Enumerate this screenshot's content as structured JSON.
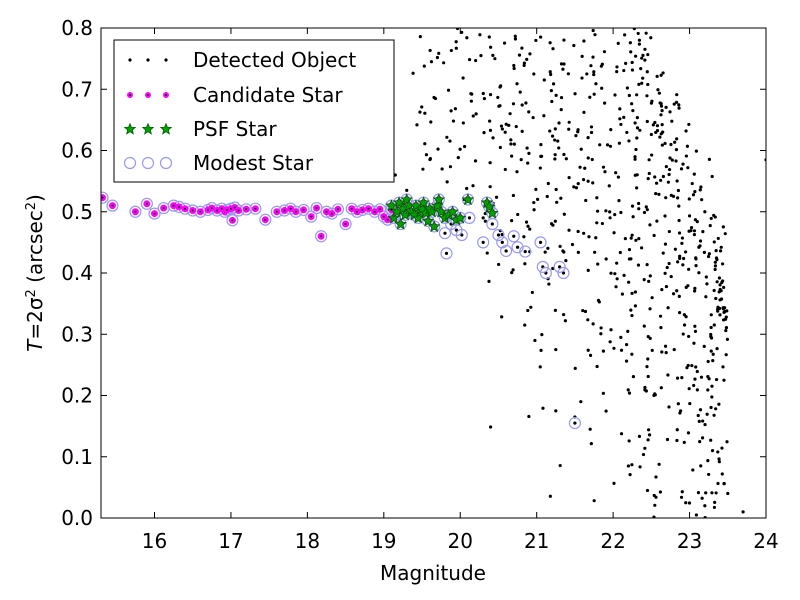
{
  "chart_data": {
    "type": "scatter",
    "xlabel": "Magnitude",
    "ylabel": "T = 2σ² (arcsec²)",
    "xlim": [
      15.3,
      24
    ],
    "ylim": [
      0.0,
      0.8
    ],
    "xticks": [
      "16",
      "17",
      "18",
      "19",
      "20",
      "21",
      "22",
      "23",
      "24"
    ],
    "yticks": [
      "0.0",
      "0.1",
      "0.2",
      "0.3",
      "0.4",
      "0.5",
      "0.6",
      "0.7",
      "0.8"
    ],
    "grid": false,
    "legend_position": "top-left",
    "legend": [
      {
        "name": "Detected Object",
        "marker": "dot",
        "color": "#000000"
      },
      {
        "name": "Candidate Star",
        "marker": "circle",
        "color": "#ff00ff"
      },
      {
        "name": "PSF Star",
        "marker": "star",
        "color": "#008000"
      },
      {
        "name": "Modest Star",
        "marker": "ring",
        "color": "#9999ee"
      }
    ],
    "series": [
      {
        "name": "Candidate Star",
        "x": [
          15.32,
          15.45,
          15.75,
          15.9,
          16.0,
          16.12,
          16.25,
          16.32,
          16.4,
          16.5,
          16.6,
          16.7,
          16.75,
          16.82,
          16.88,
          16.92,
          16.95,
          17.0,
          17.02,
          17.05,
          17.1,
          17.2,
          17.32,
          17.45,
          17.6,
          17.7,
          17.78,
          17.85,
          17.95,
          18.05,
          18.12,
          18.18,
          18.25,
          18.32,
          18.4,
          18.5,
          18.58,
          18.65,
          18.72,
          18.8,
          18.88,
          18.95,
          19.0,
          19.05,
          19.1
        ],
        "y": [
          0.523,
          0.51,
          0.5,
          0.513,
          0.497,
          0.506,
          0.51,
          0.508,
          0.505,
          0.502,
          0.5,
          0.503,
          0.506,
          0.502,
          0.505,
          0.5,
          0.503,
          0.505,
          0.486,
          0.507,
          0.502,
          0.504,
          0.505,
          0.487,
          0.5,
          0.502,
          0.505,
          0.5,
          0.503,
          0.492,
          0.506,
          0.46,
          0.5,
          0.497,
          0.504,
          0.48,
          0.505,
          0.5,
          0.503,
          0.505,
          0.5,
          0.504,
          0.492,
          0.487,
          0.503
        ]
      },
      {
        "name": "PSF Star",
        "x": [
          19.1,
          19.13,
          19.17,
          19.2,
          19.22,
          19.25,
          19.28,
          19.3,
          19.33,
          19.36,
          19.4,
          19.42,
          19.45,
          19.48,
          19.5,
          19.52,
          19.55,
          19.58,
          19.6,
          19.63,
          19.66,
          19.7,
          19.72,
          19.75,
          19.8,
          19.85,
          19.9,
          19.95,
          20.0,
          20.1,
          20.35,
          20.38,
          20.42
        ],
        "y": [
          0.51,
          0.49,
          0.5,
          0.515,
          0.48,
          0.505,
          0.495,
          0.52,
          0.51,
          0.5,
          0.495,
          0.51,
          0.49,
          0.5,
          0.505,
          0.515,
          0.498,
          0.485,
          0.505,
          0.5,
          0.476,
          0.51,
          0.52,
          0.5,
          0.49,
          0.495,
          0.5,
          0.487,
          0.49,
          0.52,
          0.515,
          0.508,
          0.498
        ]
      },
      {
        "name": "Modest Star",
        "x": [
          19.8,
          19.82,
          19.88,
          19.95,
          20.02,
          20.12,
          20.3,
          20.42,
          20.5,
          20.55,
          20.6,
          20.7,
          20.75,
          20.85,
          21.05,
          21.08,
          21.12,
          21.3,
          21.35,
          21.5
        ],
        "y": [
          0.465,
          0.432,
          0.48,
          0.47,
          0.462,
          0.49,
          0.45,
          0.48,
          0.462,
          0.45,
          0.436,
          0.46,
          0.442,
          0.435,
          0.45,
          0.41,
          0.4,
          0.41,
          0.4,
          0.155
        ]
      }
    ],
    "detected_objects": {
      "description_note": "dense cloud of small black points mainly for magnitudes 19.3–24 spanning T from 0.0 to 0.8, widest spread beyond magnitude 21",
      "x_range": [
        19.2,
        24.0
      ],
      "y_range": [
        0.0,
        0.8
      ],
      "approximate_count": 900
    }
  }
}
